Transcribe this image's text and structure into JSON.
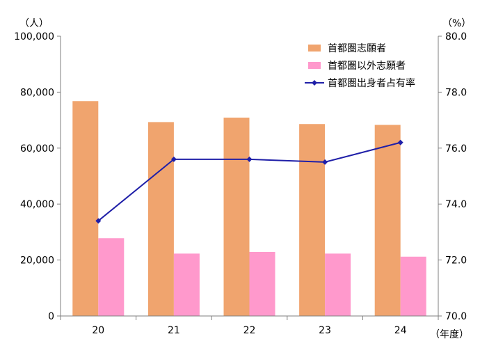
{
  "chart_data": {
    "type": "bar",
    "categories": [
      "20",
      "21",
      "22",
      "23",
      "24"
    ],
    "x_unit": "（年度）",
    "left_axis": {
      "unit": "（人）",
      "ylim": [
        0,
        100000
      ],
      "ticks": [
        "0",
        "20,000",
        "40,000",
        "60,000",
        "80,000",
        "100,000"
      ],
      "tick_values": [
        0,
        20000,
        40000,
        60000,
        80000,
        100000
      ]
    },
    "right_axis": {
      "unit": "（%）",
      "ylim": [
        70.0,
        80.0
      ],
      "ticks": [
        "70.0",
        "72.0",
        "74.0",
        "76.0",
        "78.0",
        "80.0"
      ],
      "tick_values": [
        70,
        72,
        74,
        76,
        78,
        80
      ]
    },
    "series": [
      {
        "name": "首都圏志願者",
        "kind": "bar",
        "axis": "left",
        "color": "#F0A46E",
        "values": [
          76800,
          69300,
          70900,
          68600,
          68300
        ]
      },
      {
        "name": "首都圏以外志願者",
        "kind": "bar",
        "axis": "left",
        "color": "#FF99CC",
        "values": [
          27800,
          22300,
          22900,
          22300,
          21200
        ]
      },
      {
        "name": "首都圏出身者占有率",
        "kind": "line",
        "axis": "right",
        "color": "#1F1FA8",
        "values": [
          73.4,
          75.6,
          75.6,
          75.5,
          76.2
        ]
      }
    ],
    "grid": false,
    "legend_position": "top-right"
  }
}
